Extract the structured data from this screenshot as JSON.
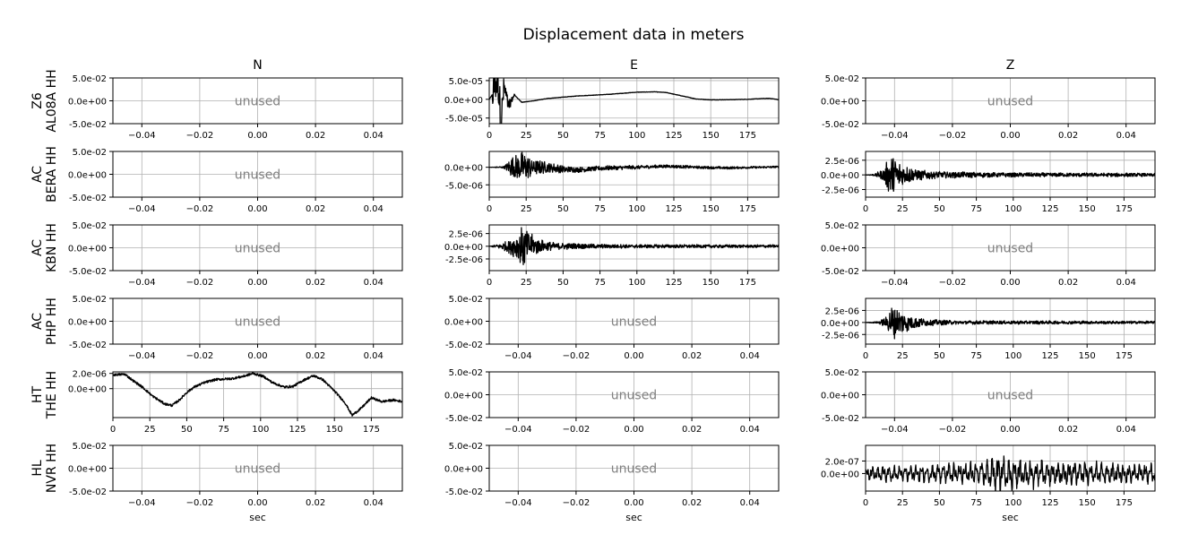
{
  "chart_data": {
    "type": "line",
    "title": "Displacement data in meters",
    "columns": [
      "N",
      "E",
      "Z"
    ],
    "rows": [
      {
        "network": "Z6",
        "station": "AL08A HH"
      },
      {
        "network": "AC",
        "station": "BERA HH"
      },
      {
        "network": "AC",
        "station": "KBN HH"
      },
      {
        "network": "AC",
        "station": "PHP HH"
      },
      {
        "network": "HT",
        "station": "THE HH"
      },
      {
        "network": "HL",
        "station": "NVR HH"
      }
    ],
    "xlabel": "sec",
    "unused_label": "unused",
    "grid": true,
    "unused_axes": {
      "xlim": [
        -0.05,
        0.05
      ],
      "xticks": [
        "−0.04",
        "−0.02",
        "0.00",
        "0.02",
        "0.04"
      ],
      "ylim": [
        -0.05,
        0.05
      ],
      "yticks": [
        "5.0e-02",
        "0.0e+00",
        "-5.0e-02"
      ]
    },
    "time_ticks": [
      "0",
      "25",
      "50",
      "75",
      "100",
      "125",
      "150",
      "175"
    ],
    "panels": [
      {
        "row": 0,
        "col": "N",
        "used": false
      },
      {
        "row": 0,
        "col": "E",
        "used": true,
        "xlim": [
          0,
          196
        ],
        "ylim": [
          -6.5e-05,
          5.7e-05
        ],
        "yticks": [
          {
            "v": 5e-05,
            "label": "5.0e-05"
          },
          {
            "v": 0,
            "label": "0.0e+00"
          },
          {
            "v": -5e-05,
            "label": "-5.0e-05"
          }
        ],
        "envelope": [
          [
            0,
            0
          ],
          [
            2,
            1.2e-05
          ],
          [
            4,
            4e-05
          ],
          [
            6,
            5.7e-05
          ],
          [
            8,
            -6e-05
          ],
          [
            10,
            3.5e-05
          ],
          [
            13,
            -2e-05
          ],
          [
            17,
            1.2e-05
          ],
          [
            22,
            -8e-06
          ],
          [
            30,
            -4e-06
          ],
          [
            40,
            2.5e-06
          ],
          [
            60,
            9e-06
          ],
          [
            80,
            1.3e-05
          ],
          [
            100,
            1.9e-05
          ],
          [
            112,
            2e-05
          ],
          [
            120,
            1.8e-05
          ],
          [
            130,
            9.5e-06
          ],
          [
            140,
            1e-06
          ],
          [
            150,
            -1.5e-06
          ],
          [
            160,
            -1.2e-06
          ],
          [
            175,
            0
          ],
          [
            185,
            2e-06
          ],
          [
            190,
            2.5e-06
          ],
          [
            196,
            -1e-06
          ]
        ],
        "noise": 5e-07
      },
      {
        "row": 0,
        "col": "Z",
        "used": false
      },
      {
        "row": 1,
        "col": "N",
        "used": false
      },
      {
        "row": 1,
        "col": "E",
        "used": true,
        "xlim": [
          0,
          196
        ],
        "ylim": [
          -8.5e-06,
          4.5e-06
        ],
        "yticks": [
          {
            "v": 0,
            "label": "0.0e+00"
          },
          {
            "v": -5e-06,
            "label": "-5.0e-06"
          }
        ],
        "envelope": [
          [
            0,
            0
          ],
          [
            10,
            3e-07
          ],
          [
            14,
            2.5e-06
          ],
          [
            18,
            4e-06
          ],
          [
            22,
            4.5e-06
          ],
          [
            25,
            4e-06
          ],
          [
            30,
            2.5e-06
          ],
          [
            40,
            1.5e-06
          ],
          [
            60,
            8e-07
          ],
          [
            90,
            6e-07
          ],
          [
            140,
            4e-07
          ],
          [
            196,
            3e-07
          ]
        ],
        "drift": [
          [
            0,
            0
          ],
          [
            40,
            0
          ],
          [
            50,
            -6e-07
          ],
          [
            60,
            -7e-07
          ],
          [
            80,
            -2e-07
          ],
          [
            100,
            0
          ],
          [
            120,
            3e-07
          ],
          [
            140,
            0
          ],
          [
            160,
            -2e-07
          ],
          [
            196,
            1e-07
          ]
        ],
        "burst": true
      },
      {
        "row": 1,
        "col": "Z",
        "used": true,
        "xlim": [
          0,
          196
        ],
        "ylim": [
          -3.8e-06,
          4e-06
        ],
        "yticks": [
          {
            "v": 2.5e-06,
            "label": "2.5e-06"
          },
          {
            "v": 0,
            "label": "0.0e+00"
          },
          {
            "v": -2.5e-06,
            "label": "-2.5e-06"
          }
        ],
        "envelope": [
          [
            0,
            0
          ],
          [
            6,
            2e-07
          ],
          [
            12,
            1e-06
          ],
          [
            17,
            3.8e-06
          ],
          [
            20,
            3e-06
          ],
          [
            26,
            1.8e-06
          ],
          [
            34,
            1e-06
          ],
          [
            50,
            6e-07
          ],
          [
            90,
            4e-07
          ],
          [
            196,
            3e-07
          ]
        ],
        "burst": true
      },
      {
        "row": 2,
        "col": "N",
        "used": false
      },
      {
        "row": 2,
        "col": "E",
        "used": true,
        "xlim": [
          0,
          196
        ],
        "ylim": [
          -4.8e-06,
          4.2e-06
        ],
        "yticks": [
          {
            "v": 2.5e-06,
            "label": "2.5e-06"
          },
          {
            "v": 0,
            "label": "0.0e+00"
          },
          {
            "v": -2.5e-06,
            "label": "-2.5e-06"
          }
        ],
        "envelope": [
          [
            0,
            0
          ],
          [
            8,
            6e-07
          ],
          [
            14,
            1.5e-06
          ],
          [
            20,
            3e-06
          ],
          [
            23,
            4.5e-06
          ],
          [
            27,
            2.8e-06
          ],
          [
            34,
            1.4e-06
          ],
          [
            45,
            7e-07
          ],
          [
            80,
            4e-07
          ],
          [
            196,
            3e-07
          ]
        ],
        "burst": true
      },
      {
        "row": 2,
        "col": "Z",
        "used": false
      },
      {
        "row": 3,
        "col": "N",
        "used": false
      },
      {
        "row": 3,
        "col": "E",
        "used": false
      },
      {
        "row": 3,
        "col": "Z",
        "used": true,
        "xlim": [
          0,
          196
        ],
        "ylim": [
          -4.5e-06,
          5e-06
        ],
        "yticks": [
          {
            "v": 2.5e-06,
            "label": "2.5e-06"
          },
          {
            "v": 0,
            "label": "0.0e+00"
          },
          {
            "v": -2.5e-06,
            "label": "-2.5e-06"
          }
        ],
        "envelope": [
          [
            0,
            0
          ],
          [
            8,
            2e-07
          ],
          [
            14,
            1.2e-06
          ],
          [
            18,
            4e-06
          ],
          [
            22,
            3e-06
          ],
          [
            30,
            1.6e-06
          ],
          [
            40,
            8e-07
          ],
          [
            60,
            4e-07
          ],
          [
            196,
            3e-07
          ]
        ],
        "burst": true
      },
      {
        "row": 4,
        "col": "N",
        "used": true,
        "xlim": [
          0,
          196
        ],
        "ylim": [
          -3.8e-06,
          2.2e-06
        ],
        "yticks": [
          {
            "v": 2e-06,
            "label": "2.0e-06"
          },
          {
            "v": 0,
            "label": "0.0e+00"
          }
        ],
        "envelope": [
          [
            0,
            1.8e-06
          ],
          [
            8,
            1.9e-06
          ],
          [
            14,
            1e-06
          ],
          [
            20,
            2e-07
          ],
          [
            27,
            -1e-06
          ],
          [
            35,
            -2e-06
          ],
          [
            40,
            -2.2e-06
          ],
          [
            45,
            -1.5e-06
          ],
          [
            50,
            -5e-07
          ],
          [
            55,
            2e-07
          ],
          [
            62,
            8e-07
          ],
          [
            70,
            1.2e-06
          ],
          [
            80,
            1.3e-06
          ],
          [
            88,
            1.6e-06
          ],
          [
            95,
            2e-06
          ],
          [
            102,
            1.6e-06
          ],
          [
            108,
            8e-07
          ],
          [
            116,
            2e-07
          ],
          [
            122,
            3e-07
          ],
          [
            130,
            1.2e-06
          ],
          [
            136,
            1.7e-06
          ],
          [
            142,
            1.2e-06
          ],
          [
            150,
            -3e-07
          ],
          [
            157,
            -1.8e-06
          ],
          [
            162,
            -3.5e-06
          ],
          [
            168,
            -2.6e-06
          ],
          [
            175,
            -1.2e-06
          ],
          [
            182,
            -1.7e-06
          ],
          [
            190,
            -1.5e-06
          ],
          [
            196,
            -1.7e-06
          ]
        ],
        "noise": 1.5e-07
      },
      {
        "row": 4,
        "col": "E",
        "used": false
      },
      {
        "row": 4,
        "col": "Z",
        "used": false
      },
      {
        "row": 5,
        "col": "N",
        "used": false
      },
      {
        "row": 5,
        "col": "E",
        "used": false
      },
      {
        "row": 5,
        "col": "Z",
        "used": true,
        "xlim": [
          0,
          196
        ],
        "ylim": [
          -2.8e-07,
          4.5e-07
        ],
        "yticks": [
          {
            "v": 2e-07,
            "label": "2.0e-07"
          },
          {
            "v": 0,
            "label": "0.0e+00"
          }
        ],
        "envelope": [
          [
            0,
            1.2e-07
          ],
          [
            40,
            1.5e-07
          ],
          [
            80,
            2e-07
          ],
          [
            88,
            3e-07
          ],
          [
            100,
            2.5e-07
          ],
          [
            130,
            2e-07
          ],
          [
            160,
            1.8e-07
          ],
          [
            196,
            1.6e-07
          ]
        ],
        "burst": true,
        "lowfreq": true
      }
    ]
  }
}
